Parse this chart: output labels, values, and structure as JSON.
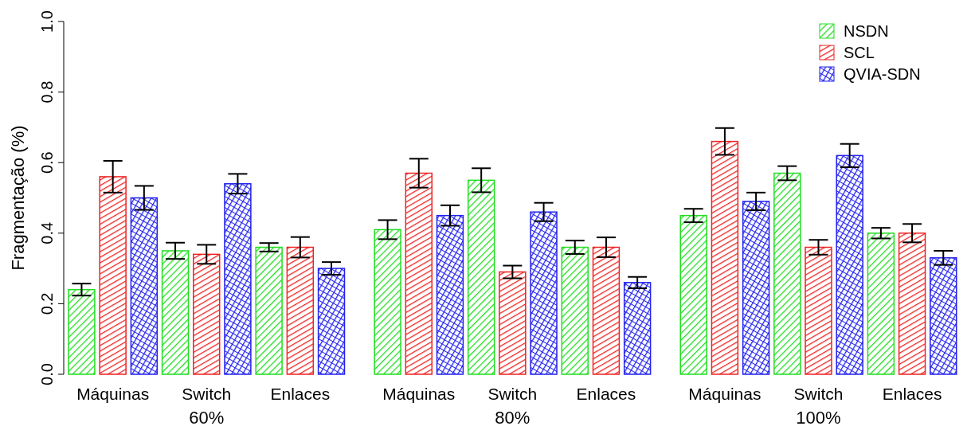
{
  "chart_data": {
    "type": "bar",
    "ylabel": "Fragmentação (%)",
    "categories": [
      "Máquinas",
      "Switch",
      "Enlaces",
      "Máquinas",
      "Switch",
      "Enlaces",
      "Máquinas",
      "Switch",
      "Enlaces"
    ],
    "annotations": [
      "60%",
      "80%",
      "100%"
    ],
    "series": [
      {
        "name": "NSDN",
        "color": "#22dd22",
        "values": [
          0.24,
          0.35,
          0.36,
          0.41,
          0.55,
          0.36,
          0.45,
          0.57,
          0.4
        ],
        "errors": [
          0.017,
          0.023,
          0.012,
          0.027,
          0.034,
          0.019,
          0.019,
          0.02,
          0.015
        ]
      },
      {
        "name": "SCL",
        "color": "#ee2222",
        "values": [
          0.56,
          0.34,
          0.36,
          0.57,
          0.29,
          0.36,
          0.66,
          0.36,
          0.4
        ],
        "errors": [
          0.045,
          0.027,
          0.029,
          0.041,
          0.018,
          0.028,
          0.038,
          0.021,
          0.026
        ]
      },
      {
        "name": "QVIA-SDN",
        "color": "#2222ee",
        "values": [
          0.5,
          0.54,
          0.3,
          0.45,
          0.46,
          0.26,
          0.49,
          0.62,
          0.33
        ],
        "errors": [
          0.034,
          0.028,
          0.018,
          0.029,
          0.026,
          0.016,
          0.025,
          0.033,
          0.02
        ]
      }
    ],
    "ylim": [
      0,
      1
    ],
    "yticks": [
      {
        "value": 0,
        "label": "0.0"
      },
      {
        "value": 0.2,
        "label": "0.2"
      },
      {
        "value": 0.4,
        "label": "0.4"
      },
      {
        "value": 0.6,
        "label": "0.6"
      },
      {
        "value": 0.8,
        "label": "0.8"
      },
      {
        "value": 1,
        "label": "1.0"
      }
    ],
    "legend": "top right",
    "grid": false
  }
}
